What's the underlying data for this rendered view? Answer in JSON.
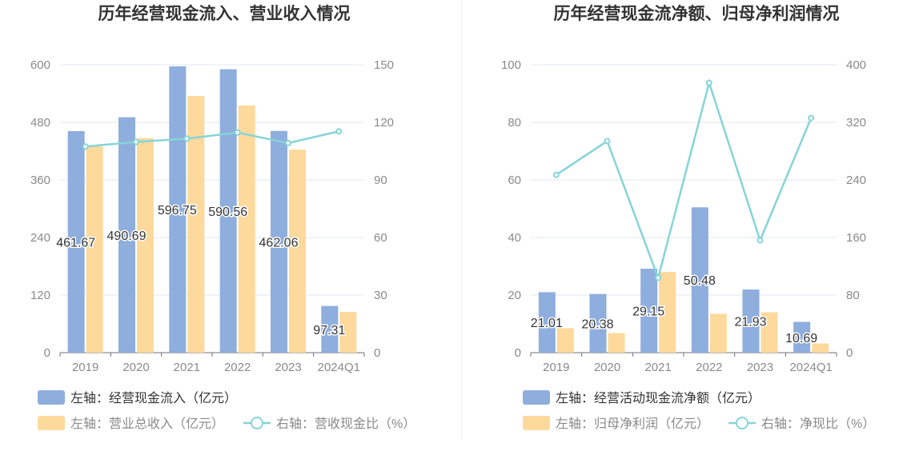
{
  "chart_data": [
    {
      "type": "bar",
      "title": "历年经营现金流入、营业收入情况",
      "categories": [
        "2019",
        "2020",
        "2021",
        "2022",
        "2023",
        "2024Q1"
      ],
      "left_axis": {
        "range": [
          0,
          600
        ],
        "ticks": [
          0,
          120,
          240,
          360,
          480,
          600
        ]
      },
      "right_axis": {
        "range": [
          0,
          150
        ],
        "ticks": [
          0,
          30,
          60,
          90,
          120,
          150
        ]
      },
      "grid": true,
      "legend_position": "bottom-left",
      "series": [
        {
          "name": "左轴：经营现金流入（亿元）",
          "kind": "bar",
          "axis": "left",
          "color": "#8eaedd",
          "values": [
            461.67,
            490.69,
            596.75,
            590.56,
            462.06,
            97.31
          ],
          "labels": [
            "461.67",
            "490.69",
            "596.75",
            "590.56",
            "462.06",
            "97.31"
          ]
        },
        {
          "name": "左轴：营业总收入（亿元）",
          "kind": "bar",
          "axis": "left",
          "color": "#fdd99b",
          "values": [
            430,
            447,
            535,
            515,
            423,
            85
          ]
        },
        {
          "name": "右轴：营收现金比（%）",
          "kind": "line",
          "axis": "right",
          "color": "#86d4d8",
          "values": [
            107.4,
            109.8,
            111.5,
            114.7,
            109.2,
            115.3
          ]
        }
      ]
    },
    {
      "type": "bar",
      "title": "历年经营现金流净额、归母净利润情况",
      "categories": [
        "2019",
        "2020",
        "2021",
        "2022",
        "2023",
        "2024Q1"
      ],
      "left_axis": {
        "range": [
          0,
          100
        ],
        "ticks": [
          0,
          20,
          40,
          60,
          80,
          100
        ]
      },
      "right_axis": {
        "range": [
          0,
          400
        ],
        "ticks": [
          0,
          80,
          160,
          240,
          320,
          400
        ]
      },
      "grid": true,
      "legend_position": "bottom-left",
      "series": [
        {
          "name": "左轴：经营活动现金流净额（亿元）",
          "kind": "bar",
          "axis": "left",
          "color": "#8eaedd",
          "values": [
            21.01,
            20.38,
            29.15,
            50.48,
            21.93,
            10.69
          ],
          "labels": [
            "21.01",
            "20.38",
            "29.15",
            "50.48",
            "21.93",
            "10.69"
          ]
        },
        {
          "name": "左轴：归母净利润（亿元）",
          "kind": "bar",
          "axis": "left",
          "color": "#fdd99b",
          "values": [
            8.5,
            6.8,
            28.0,
            13.5,
            14.0,
            3.2
          ]
        },
        {
          "name": "右轴：净现比（%）",
          "kind": "line",
          "axis": "right",
          "color": "#86d4d8",
          "values": [
            247,
            294,
            104,
            375,
            156,
            326
          ]
        }
      ]
    }
  ]
}
